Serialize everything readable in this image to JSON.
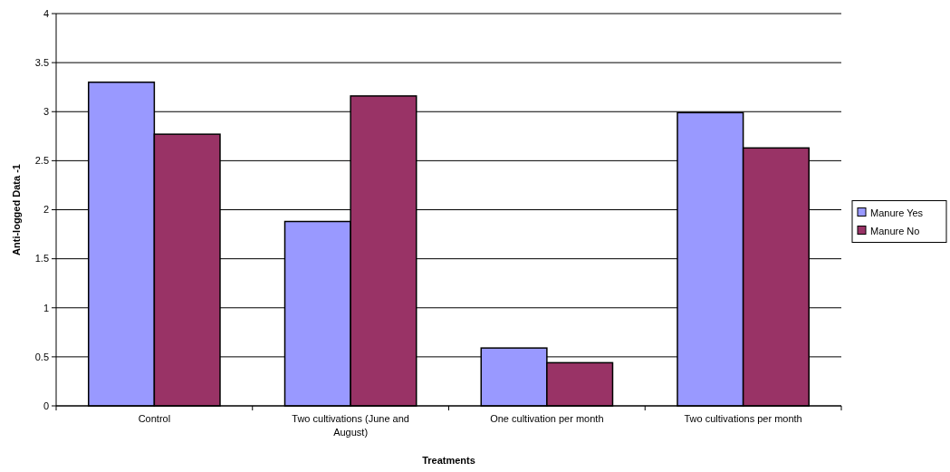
{
  "chart_data": {
    "type": "bar",
    "xlabel": "Treatments",
    "ylabel": "Anti-logged Data -1",
    "categories": [
      "Control",
      "Two cultivations (June and August)",
      "One cultivation per month",
      "Two cultivations per month"
    ],
    "series": [
      {
        "name": "Manure Yes",
        "color": "#9999ff",
        "values": [
          3.3,
          1.88,
          0.59,
          2.99
        ]
      },
      {
        "name": "Manure No",
        "color": "#993366",
        "values": [
          2.77,
          3.16,
          0.44,
          2.63
        ]
      }
    ],
    "ylim": [
      0,
      4
    ],
    "yticks": [
      0,
      {
        "value": 0.5,
        "label": "0.5"
      },
      1,
      {
        "value": 1.5,
        "label": "1.5"
      },
      2,
      {
        "value": 2.5,
        "label": "2.5"
      },
      3,
      {
        "value": 3.5,
        "label": "3.5"
      },
      4
    ],
    "grid": "y",
    "legend": "right"
  }
}
